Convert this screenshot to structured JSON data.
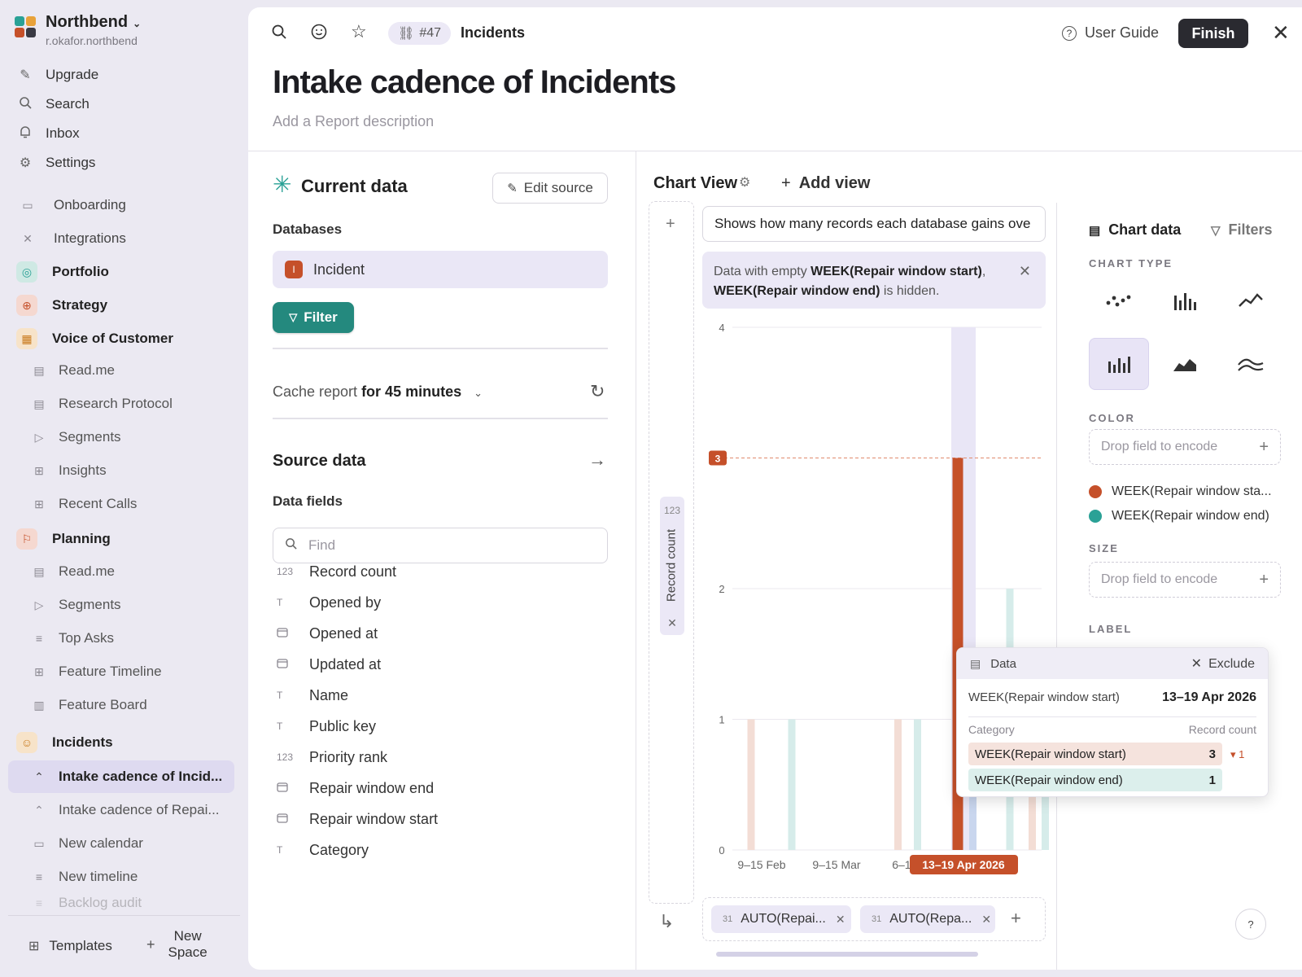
{
  "workspace": {
    "name": "Northbend",
    "email": "r.okafor.northbend"
  },
  "nav": [
    {
      "label": "Upgrade",
      "icon": "rocket-icon"
    },
    {
      "label": "Search",
      "icon": "search-icon"
    },
    {
      "label": "Inbox",
      "icon": "bell-icon"
    },
    {
      "label": "Settings",
      "icon": "gear-icon"
    }
  ],
  "sidebar": {
    "onboarding": "Onboarding",
    "integrations": "Integrations",
    "portfolio": "Portfolio",
    "strategy": "Strategy",
    "voc": "Voice of Customer",
    "voc_items": [
      "Read.me",
      "Research Protocol",
      "Segments",
      "Insights",
      "Recent Calls"
    ],
    "planning": "Planning",
    "planning_items": [
      "Read.me",
      "Segments",
      "Top Asks",
      "Feature Timeline",
      "Feature Board"
    ],
    "incidents": "Incidents",
    "incidents_items": [
      "Intake cadence of Incid...",
      "Intake cadence of Repai...",
      "New calendar",
      "New timeline",
      "Backlog audit"
    ],
    "templates": "Templates",
    "new_space_line1": "New",
    "new_space_line2": "Space"
  },
  "topbar": {
    "ref": "#47",
    "breadcrumb": "Incidents",
    "user_guide": "User Guide",
    "finish": "Finish"
  },
  "report": {
    "title": "Intake cadence of Incidents",
    "description_placeholder": "Add a Report description"
  },
  "current_data": {
    "title": "Current data",
    "edit_source": "Edit source",
    "databases_label": "Databases",
    "database": {
      "badge": "I",
      "name": "Incident"
    },
    "filter": "Filter",
    "cache_prefix": "Cache report ",
    "cache_value": "for 45 minutes",
    "source_data": "Source data",
    "data_fields_label": "Data fields",
    "find_placeholder": "Find",
    "fields": [
      {
        "type": "123",
        "label": "Record count"
      },
      {
        "type": "T",
        "label": "Opened by"
      },
      {
        "type": "cal",
        "label": "Opened at"
      },
      {
        "type": "cal",
        "label": "Updated at"
      },
      {
        "type": "T",
        "label": "Name"
      },
      {
        "type": "T",
        "label": "Public key"
      },
      {
        "type": "123",
        "label": "Priority rank"
      },
      {
        "type": "cal",
        "label": "Repair window end"
      },
      {
        "type": "cal",
        "label": "Repair window start"
      },
      {
        "type": "T",
        "label": "Category"
      }
    ]
  },
  "chart_view": {
    "title": "Chart View",
    "add_view": "Add view",
    "description": "Shows how many records each database gains ove",
    "notice_prefix": "Data with empty ",
    "notice_field1": "WEEK(Repair window start)",
    "notice_sep": ", ",
    "notice_field2": "WEEK(Repair window end)",
    "notice_suffix": " is hidden.",
    "y_axis_type": "123",
    "y_axis_field": "Record count",
    "x_chips": [
      {
        "type": "31",
        "label": "AUTO(Repai..."
      },
      {
        "type": "31",
        "label": "AUTO(Repa..."
      }
    ]
  },
  "chart_data": {
    "type": "bar",
    "ylabel": "Record count",
    "ylim": [
      0,
      4
    ],
    "yticks": [
      0,
      1,
      2,
      4
    ],
    "xtick_labels": [
      "9–15 Feb",
      "9–15 Mar",
      "6–12 A"
    ],
    "highlight_label": "13–19 Apr 2026",
    "highlight_value_label": "3",
    "series": [
      {
        "name": "WEEK(Repair window start)",
        "color": "#c5502a",
        "points": [
          {
            "x": "9–15 Feb",
            "y": 1
          },
          {
            "x": "6–12 Apr",
            "y": 1
          },
          {
            "x": "13–19 Apr 2026",
            "y": 3
          },
          {
            "x": "27 Apr–3 May",
            "y": 1
          }
        ]
      },
      {
        "name": "WEEK(Repair window end)",
        "color": "#2aa196",
        "points": [
          {
            "x": "16–22 Feb",
            "y": 1
          },
          {
            "x": "6–12 Apr",
            "y": 1
          },
          {
            "x": "13–19 Apr 2026",
            "y": 1
          },
          {
            "x": "20–26 Apr",
            "y": 2
          },
          {
            "x": "27 Apr–3 May",
            "y": 1
          }
        ]
      }
    ]
  },
  "config": {
    "chart_data_tab": "Chart data",
    "filters_tab": "Filters",
    "chart_type_label": "CHART TYPE",
    "color_label": "COLOR",
    "size_label": "SIZE",
    "label_label": "LABEL",
    "drop_placeholder": "Drop field to encode",
    "legend": [
      {
        "label": "WEEK(Repair window sta...",
        "color": "#c5502a"
      },
      {
        "label": "WEEK(Repair window end)",
        "color": "#2aa196"
      }
    ]
  },
  "tooltip": {
    "title": "Data",
    "exclude": "Exclude",
    "key": "WEEK(Repair window start)",
    "value": "13–19 Apr 2026",
    "col_category": "Category",
    "col_count": "Record count",
    "rows": [
      {
        "label": "WEEK(Repair window start)",
        "value": "3",
        "delta": "▾ 1"
      },
      {
        "label": "WEEK(Repair window end)",
        "value": "1"
      }
    ]
  },
  "colors": {
    "accent": "#24897e",
    "brand_orange": "#c5502a",
    "teal": "#2aa196"
  }
}
